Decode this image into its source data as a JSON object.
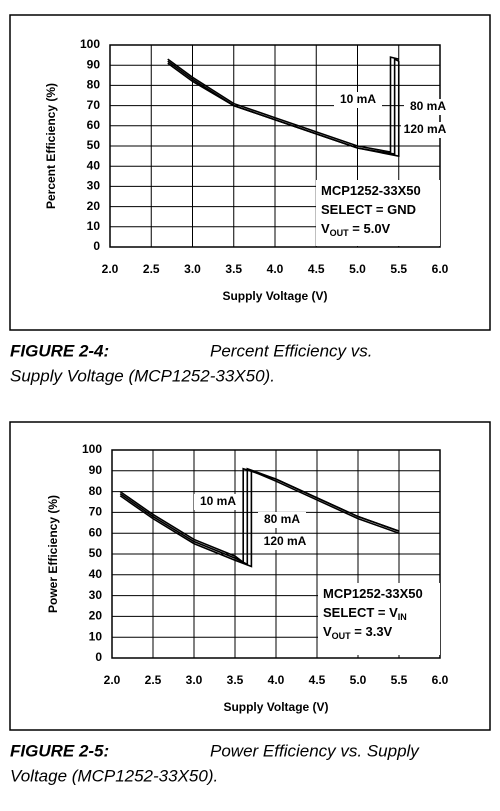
{
  "chart_data": [
    {
      "type": "line",
      "figure_label": "FIGURE 2-4:",
      "caption_lines": [
        "Percent Efficiency vs.",
        "Supply Voltage (MCP1252-33X50)."
      ],
      "xlabel": "Supply Voltage (V)",
      "ylabel": "Percent Efficiency (%)",
      "xlim": [
        2,
        6
      ],
      "ylim": [
        0,
        100
      ],
      "xticks": [
        {
          "value": 2,
          "label": "2.0"
        },
        2.5,
        {
          "value": 3,
          "label": "3.0"
        },
        3.5,
        {
          "value": 4,
          "label": "4.0"
        },
        4.5,
        {
          "value": 5,
          "label": "5.0"
        },
        5.5,
        {
          "value": 6,
          "label": "6.0"
        }
      ],
      "yticks": [
        0,
        10,
        20,
        30,
        40,
        50,
        60,
        70,
        80,
        90,
        100
      ],
      "grid": true,
      "series": [
        {
          "name": "10 mA",
          "color": "#000000",
          "x": [
            2.7,
            3.0,
            3.5,
            4.0,
            4.5,
            5.0,
            5.4,
            5.4,
            5.5
          ],
          "values": [
            93,
            84,
            71,
            64,
            57,
            50,
            47,
            94,
            93
          ]
        },
        {
          "name": "80 mA",
          "color": "#000000",
          "x": [
            2.7,
            3.0,
            3.5,
            4.0,
            4.5,
            5.0,
            5.45,
            5.45,
            5.5
          ],
          "values": [
            92,
            83,
            70,
            63,
            56,
            49,
            46,
            93,
            92
          ]
        },
        {
          "name": "120 mA",
          "color": "#000000",
          "x": [
            2.7,
            3.0,
            3.5,
            4.0,
            4.5,
            5.0,
            5.5,
            5.5
          ],
          "values": [
            91,
            82,
            70,
            63,
            56,
            49,
            45,
            92
          ]
        }
      ],
      "annotation_lines": [
        [
          {
            "text": "MCP1252-33X50"
          }
        ],
        [
          {
            "text": "SELECT = GND"
          }
        ],
        [
          {
            "text": "V"
          },
          {
            "text": "OUT",
            "subscript": true
          },
          {
            "text": " = 5.0V"
          }
        ]
      ]
    },
    {
      "type": "line",
      "figure_label": "FIGURE 2-5:",
      "caption_lines": [
        "Power Efficiency vs. Supply",
        "Voltage (MCP1252-33X50)."
      ],
      "xlabel": "Supply Voltage (V)",
      "ylabel": "Power Efficiency (%)",
      "xlim": [
        2,
        6
      ],
      "ylim": [
        0,
        100
      ],
      "xticks": [
        {
          "value": 2,
          "label": "2.0"
        },
        2.5,
        {
          "value": 3,
          "label": "3.0"
        },
        3.5,
        {
          "value": 4,
          "label": "4.0"
        },
        4.5,
        {
          "value": 5,
          "label": "5.0"
        },
        5.5,
        {
          "value": 6,
          "label": "6.0"
        }
      ],
      "yticks": [
        0,
        10,
        20,
        30,
        40,
        50,
        60,
        70,
        80,
        90,
        100
      ],
      "grid": true,
      "series": [
        {
          "name": "10 mA",
          "color": "#000000",
          "x": [
            2.1,
            2.5,
            3.0,
            3.5,
            3.6,
            3.6,
            4.0,
            4.5,
            5.0,
            5.5
          ],
          "values": [
            80,
            69,
            57,
            49,
            46,
            91,
            86,
            77,
            68,
            61
          ]
        },
        {
          "name": "80 mA",
          "color": "#000000",
          "x": [
            2.1,
            2.5,
            3.0,
            3.5,
            3.65,
            3.65,
            4.0,
            4.5,
            5.0,
            5.5
          ],
          "values": [
            79,
            68,
            56,
            48,
            45,
            91,
            86,
            77,
            68,
            61
          ]
        },
        {
          "name": "120 mA",
          "color": "#000000",
          "x": [
            2.1,
            2.5,
            3.0,
            3.5,
            3.7,
            3.7,
            4.0,
            4.5,
            5.0,
            5.5
          ],
          "values": [
            78,
            67,
            55,
            47,
            44,
            90,
            85,
            76,
            67,
            60
          ]
        }
      ],
      "annotation_lines": [
        [
          {
            "text": "MCP1252-33X50"
          }
        ],
        [
          {
            "text": "SELECT = V"
          },
          {
            "text": "IN",
            "subscript": true
          }
        ],
        [
          {
            "text": "V"
          },
          {
            "text": "OUT",
            "subscript": true
          },
          {
            "text": " = 3.3V"
          }
        ]
      ]
    }
  ]
}
